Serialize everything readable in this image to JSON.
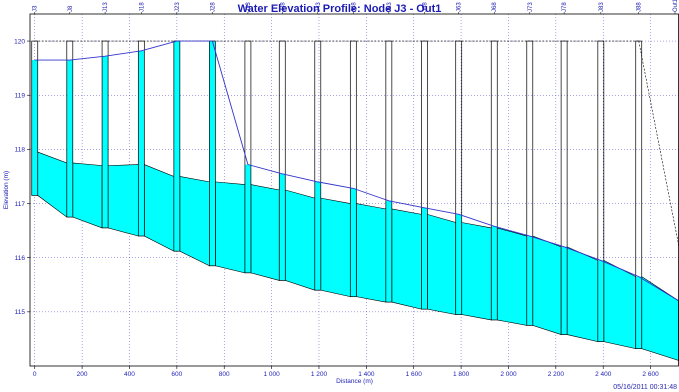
{
  "timestamp": "05/16/2011 00:31:48",
  "colors": {
    "fill": "#00ffff",
    "water_line": "#3333cc",
    "grid": "#2222bb",
    "axis_text": "#1c1cb4",
    "frame": "#000000"
  },
  "chart_data": {
    "type": "area",
    "title": "Water Elevation Profile:  Node J3 - Out1",
    "xlabel": "Distance (m)",
    "ylabel": "Elevation (m)",
    "xlim": [
      -20,
      2720
    ],
    "ylim": [
      114.0,
      120.5
    ],
    "grid": true,
    "x_ticks": [
      0,
      200,
      400,
      600,
      800,
      1000,
      1200,
      1400,
      1600,
      1800,
      2000,
      2200,
      2400,
      2600
    ],
    "x_tick_labels": [
      "0",
      "200",
      "400",
      "600",
      "800",
      "1 000",
      "1 200",
      "1 400",
      "1 600",
      "1 800",
      "2 000",
      "2 200",
      "2 400",
      "2 600"
    ],
    "y_ticks": [
      115,
      116,
      117,
      118,
      119,
      120
    ],
    "y_tick_labels": [
      "115",
      "116",
      "117",
      "118",
      "119",
      "120"
    ],
    "ground_level": 120.0,
    "nodes": [
      {
        "name": "J3",
        "x": 0,
        "invert": 117.15,
        "crown": 117.95,
        "water": 119.65
      },
      {
        "name": "J8",
        "x": 148,
        "invert": 116.75,
        "crown": 117.75,
        "water": 119.65
      },
      {
        "name": "J13",
        "x": 297,
        "invert": 116.55,
        "crown": 117.7,
        "water": 119.72
      },
      {
        "name": "J18",
        "x": 450,
        "invert": 116.4,
        "crown": 117.72,
        "water": 119.82
      },
      {
        "name": "J23",
        "x": 600,
        "invert": 116.12,
        "crown": 117.5,
        "water": 120.0
      },
      {
        "name": "J28",
        "x": 750,
        "invert": 115.85,
        "crown": 117.4,
        "water": 120.0
      },
      {
        "name": "J33",
        "x": 900,
        "invert": 115.72,
        "crown": 117.35,
        "water": 117.72
      },
      {
        "name": "J38",
        "x": 1045,
        "invert": 115.58,
        "crown": 117.25,
        "water": 117.55
      },
      {
        "name": "J43",
        "x": 1195,
        "invert": 115.4,
        "crown": 117.1,
        "water": 117.4
      },
      {
        "name": "J48",
        "x": 1345,
        "invert": 115.28,
        "crown": 117.0,
        "water": 117.28
      },
      {
        "name": "J53",
        "x": 1495,
        "invert": 115.18,
        "crown": 116.9,
        "water": 117.05
      },
      {
        "name": "J58",
        "x": 1645,
        "invert": 115.05,
        "crown": 116.8,
        "water": 116.92
      },
      {
        "name": "J63",
        "x": 1790,
        "invert": 114.95,
        "crown": 116.65,
        "water": 116.8
      },
      {
        "name": "J68",
        "x": 1940,
        "invert": 114.85,
        "crown": 116.55,
        "water": 116.58
      },
      {
        "name": "J73",
        "x": 2090,
        "invert": 114.75,
        "crown": 116.4,
        "water": 116.4
      },
      {
        "name": "J78",
        "x": 2235,
        "invert": 114.58,
        "crown": 116.2,
        "water": 116.2
      },
      {
        "name": "J83",
        "x": 2390,
        "invert": 114.45,
        "crown": 115.95,
        "water": 115.95
      },
      {
        "name": "J88",
        "x": 2550,
        "invert": 114.32,
        "crown": 115.65,
        "water": 115.65
      },
      {
        "name": "Out1",
        "x": 2720,
        "invert": 114.1,
        "crown": 115.2,
        "water": 115.2
      }
    ]
  }
}
